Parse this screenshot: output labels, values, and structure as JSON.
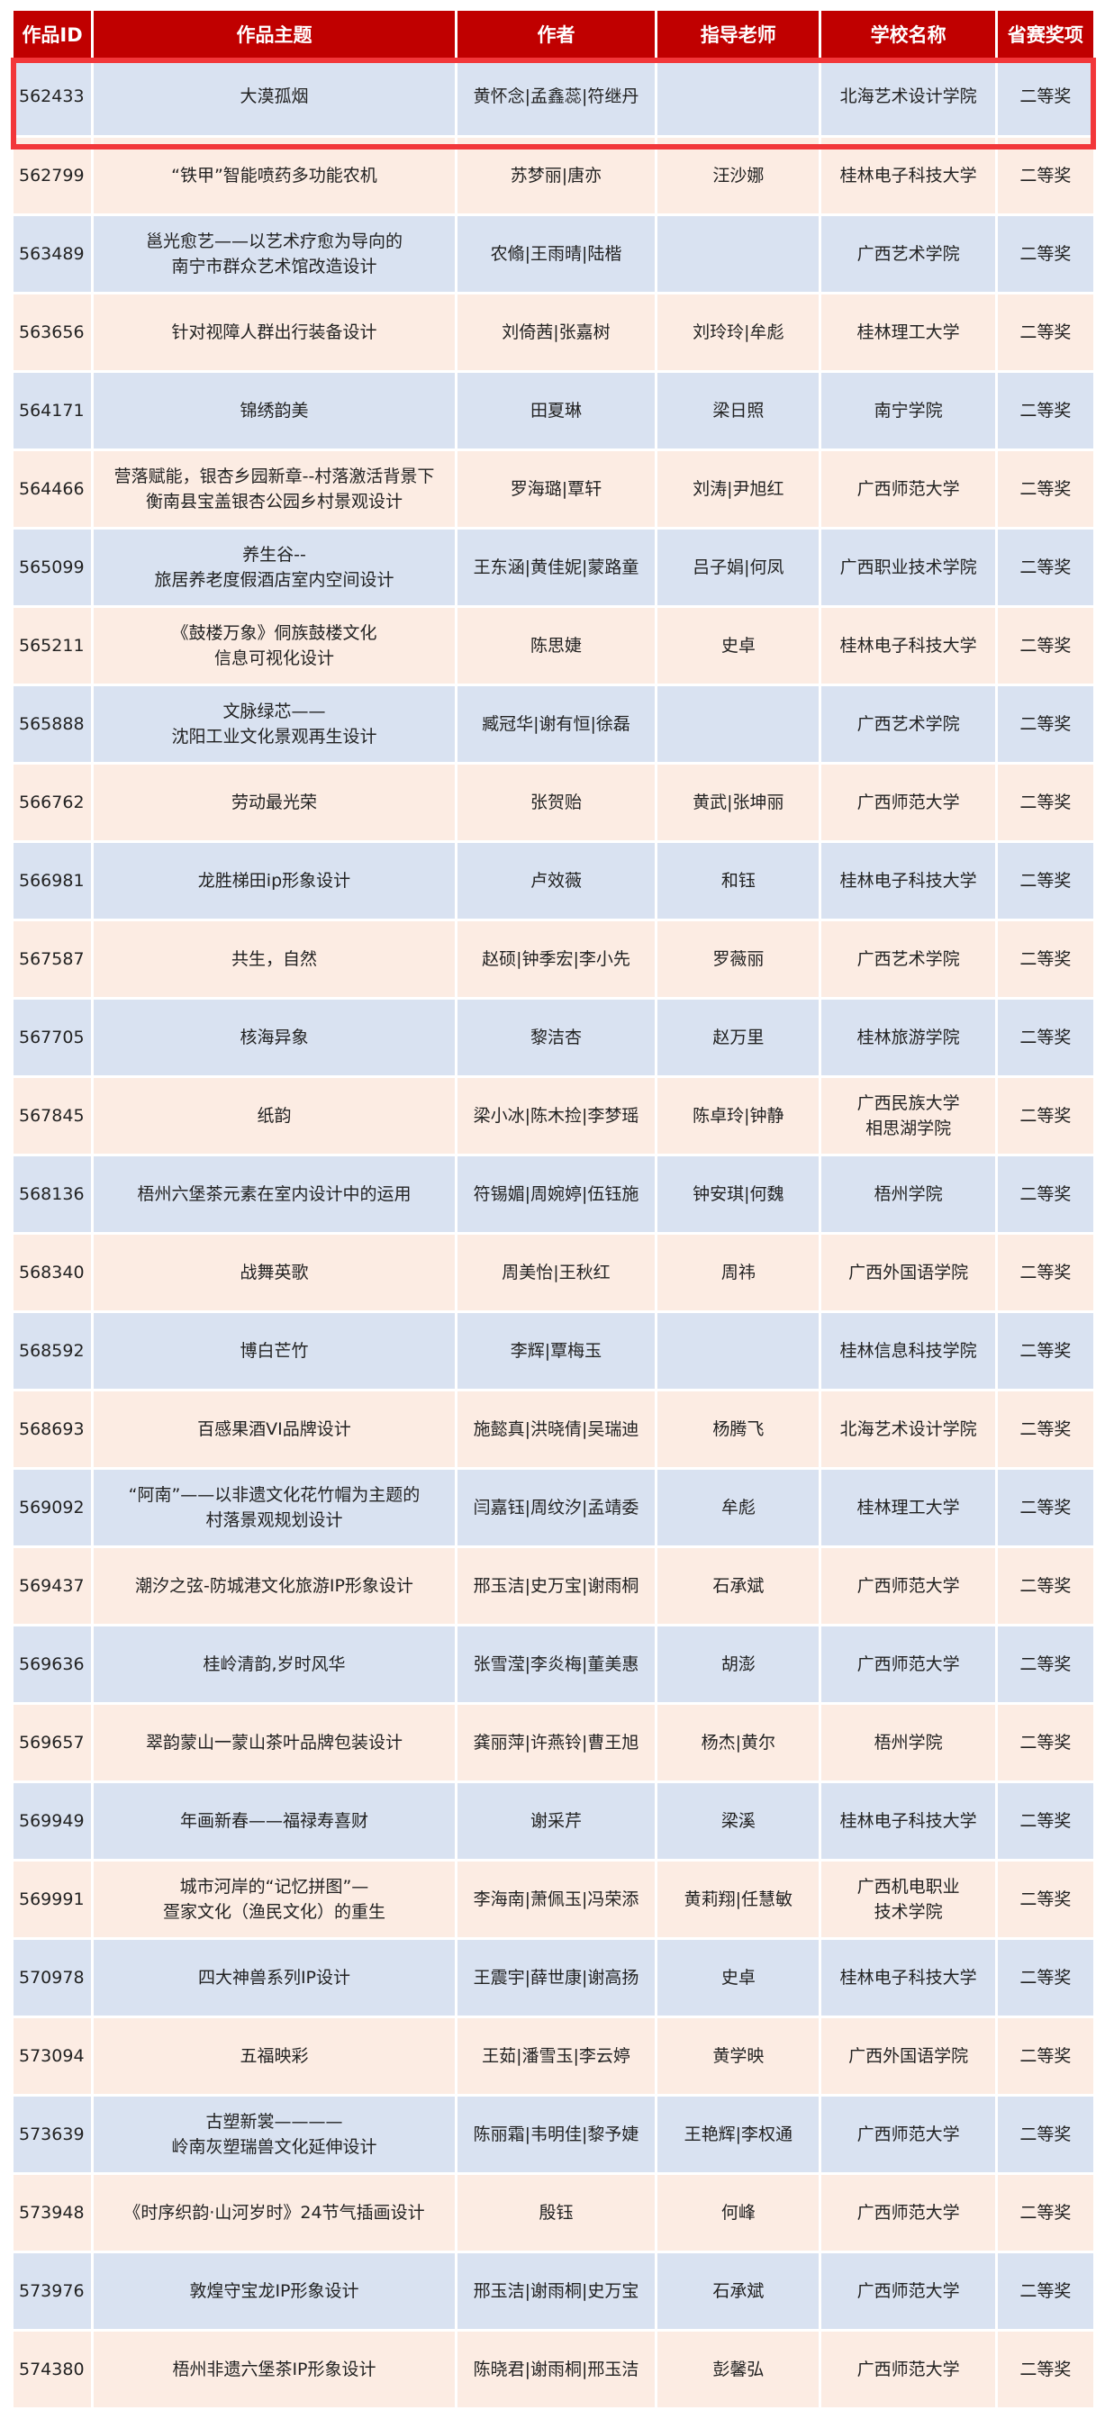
{
  "table": {
    "headers": [
      "作品ID",
      "作品主题",
      "作者",
      "指导老师",
      "学校名称",
      "省赛奖项"
    ],
    "highlighted_row": 0,
    "colors": {
      "header": "#c00000",
      "row_blue": "#d9e2f1",
      "row_peach": "#fcece3",
      "highlight": "#f2373a"
    },
    "rows": [
      [
        "562433",
        "大漠孤烟",
        "黄怀念|孟鑫蕊|符继丹",
        "",
        "北海艺术设计学院",
        "二等奖"
      ],
      [
        "562799",
        "“铁甲”智能喷药多功能农机",
        "苏梦丽|唐亦",
        "汪沙娜",
        "桂林电子科技大学",
        "二等奖"
      ],
      [
        "563489",
        "邕光愈艺——以艺术疗愈为导向的\n南宁市群众艺术馆改造设计",
        "农翛|王雨晴|陆楷",
        "",
        "广西艺术学院",
        "二等奖"
      ],
      [
        "563656",
        "针对视障人群出行装备设计",
        "刘倚茜|张嘉树",
        "刘玲玲|牟彪",
        "桂林理工大学",
        "二等奖"
      ],
      [
        "564171",
        "锦绣韵美",
        "田夏琳",
        "梁日照",
        "南宁学院",
        "二等奖"
      ],
      [
        "564466",
        "营落赋能，银杏乡园新章--村落激活背景下\n衡南县宝盖银杏公园乡村景观设计",
        "罗海璐|覃轩",
        "刘涛|尹旭红",
        "广西师范大学",
        "二等奖"
      ],
      [
        "565099",
        "养生谷--\n旅居养老度假酒店室内空间设计",
        "王东涵|黄佳妮|蒙路童",
        "吕子娟|何凤",
        "广西职业技术学院",
        "二等奖"
      ],
      [
        "565211",
        "《鼓楼万象》侗族鼓楼文化\n信息可视化设计",
        "陈思婕",
        "史卓",
        "桂林电子科技大学",
        "二等奖"
      ],
      [
        "565888",
        "文脉绿芯——\n沈阳工业文化景观再生设计",
        "臧冠华|谢有恒|徐磊",
        "",
        "广西艺术学院",
        "二等奖"
      ],
      [
        "566762",
        "劳动最光荣",
        "张贺贻",
        "黄武|张坤丽",
        "广西师范大学",
        "二等奖"
      ],
      [
        "566981",
        "龙胜梯田ip形象设计",
        "卢效薇",
        "和钰",
        "桂林电子科技大学",
        "二等奖"
      ],
      [
        "567587",
        "共生，自然",
        "赵硕|钟季宏|李小先",
        "罗薇丽",
        "广西艺术学院",
        "二等奖"
      ],
      [
        "567705",
        "核海异象",
        "黎洁杏",
        "赵万里",
        "桂林旅游学院",
        "二等奖"
      ],
      [
        "567845",
        "纸韵",
        "梁小冰|陈木捡|李梦瑶",
        "陈卓玲|钟静",
        "广西民族大学\n相思湖学院",
        "二等奖"
      ],
      [
        "568136",
        "梧州六堡茶元素在室内设计中的运用",
        "符锡媚|周婉婷|伍钰施",
        "钟安琪|何魏",
        "梧州学院",
        "二等奖"
      ],
      [
        "568340",
        "战舞英歌",
        "周美怡|王秋红",
        "周祎",
        "广西外国语学院",
        "二等奖"
      ],
      [
        "568592",
        "博白芒竹",
        "李辉|覃梅玉",
        "",
        "桂林信息科技学院",
        "二等奖"
      ],
      [
        "568693",
        "百感果酒VI品牌设计",
        "施懿真|洪晓倩|吴瑞迪",
        "杨腾飞",
        "北海艺术设计学院",
        "二等奖"
      ],
      [
        "569092",
        "“阿南”——以非遗文化花竹帽为主题的\n村落景观规划设计",
        "闫嘉钰|周纹汐|孟靖委",
        "牟彪",
        "桂林理工大学",
        "二等奖"
      ],
      [
        "569437",
        "潮汐之弦-防城港文化旅游IP形象设计",
        "邢玉洁|史万宝|谢雨桐",
        "石承斌",
        "广西师范大学",
        "二等奖"
      ],
      [
        "569636",
        "桂岭清韵,岁时风华",
        "张雪滢|李炎梅|董美惠",
        "胡澎",
        "广西师范大学",
        "二等奖"
      ],
      [
        "569657",
        "翠韵蒙山一蒙山茶叶品牌包装设计",
        "龚丽萍|许燕铃|曹王旭",
        "杨杰|黄尔",
        "梧州学院",
        "二等奖"
      ],
      [
        "569949",
        "年画新春——福禄寿喜财",
        "谢采芹",
        "梁溪",
        "桂林电子科技大学",
        "二等奖"
      ],
      [
        "569991",
        "城市河岸的“记忆拼图”—\n疍家文化（渔民文化）的重生",
        "李海南|萧佩玉|冯荣添",
        "黄莉翔|任慧敏",
        "广西机电职业\n技术学院",
        "二等奖"
      ],
      [
        "570978",
        "四大神兽系列IP设计",
        "王震宇|薛世康|谢高扬",
        "史卓",
        "桂林电子科技大学",
        "二等奖"
      ],
      [
        "573094",
        "五福映彩",
        "王茹|潘雪玉|李云婷",
        "黄学映",
        "广西外国语学院",
        "二等奖"
      ],
      [
        "573639",
        "古塑新裳————\n岭南灰塑瑞兽文化延伸设计",
        "陈丽霜|韦明佳|黎予婕",
        "王艳辉|李权通",
        "广西师范大学",
        "二等奖"
      ],
      [
        "573948",
        "《时序织韵·山河岁时》24节气插画设计",
        "殷钰",
        "何峰",
        "广西师范大学",
        "二等奖"
      ],
      [
        "573976",
        "敦煌守宝龙IP形象设计",
        "邢玉洁|谢雨桐|史万宝",
        "石承斌",
        "广西师范大学",
        "二等奖"
      ],
      [
        "574380",
        "梧州非遗六堡茶IP形象设计",
        "陈晓君|谢雨桐|邢玉洁",
        "彭馨弘",
        "广西师范大学",
        "二等奖"
      ]
    ]
  }
}
